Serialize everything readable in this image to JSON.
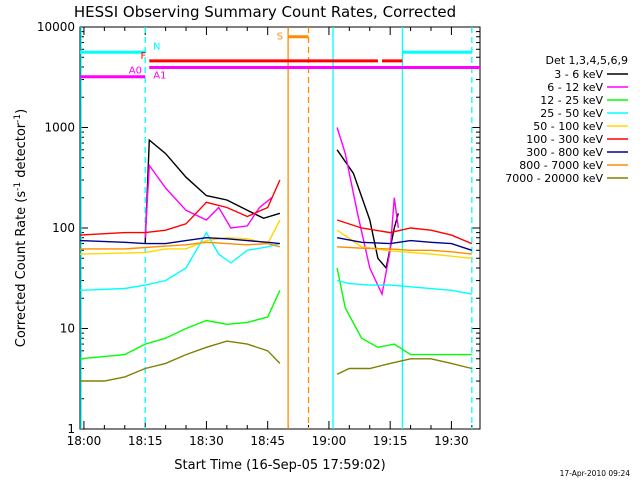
{
  "chart_data": {
    "type": "line",
    "title": "HESSI Observing Summary Count Rates, Corrected",
    "xlabel": "Start Time (16-Sep-05 17:59:02)",
    "ylabel": "Corrected Count Rate (s⁻¹ detector⁻¹)",
    "ylabel_main": "Corrected Count Rate (s",
    "ylabel_sup1": "-1",
    "ylabel_mid": " detector",
    "ylabel_sup2": "-1",
    "ylabel_end": ")",
    "footer": "17-Apr-2010 09:24",
    "y_scale": "log",
    "xlim": [
      "17:59:02",
      "19:37:00"
    ],
    "ylim": [
      1,
      10000
    ],
    "x_ticks": [
      "18:00",
      "18:15",
      "18:30",
      "18:45",
      "19:00",
      "19:15",
      "19:30"
    ],
    "y_ticks": [
      "1",
      "10",
      "100",
      "1000",
      "10000"
    ],
    "legend_title": "Det 1,3,4,5,6,9",
    "legend_position": "right",
    "series": [
      {
        "name": "3 - 6 keV",
        "color": "#000000",
        "x": [
          "18:15",
          "18:16",
          "18:20",
          "18:25",
          "18:30",
          "18:35",
          "18:40",
          "18:44",
          "18:48",
          "19:02",
          "19:06",
          "19:10",
          "19:12",
          "19:14",
          "19:16",
          "19:17"
        ],
        "y": [
          70,
          750,
          550,
          320,
          210,
          190,
          150,
          125,
          140,
          600,
          350,
          120,
          50,
          40,
          100,
          140
        ]
      },
      {
        "name": "6 - 12 keV",
        "color": "#ff00ff",
        "x": [
          "18:15",
          "18:16",
          "18:20",
          "18:25",
          "18:30",
          "18:33",
          "18:36",
          "18:40",
          "18:43",
          "18:46",
          "19:02",
          "19:04",
          "19:07",
          "19:10",
          "19:13",
          "19:15",
          "19:16",
          "19:17"
        ],
        "y": [
          80,
          420,
          250,
          150,
          120,
          160,
          100,
          105,
          160,
          200,
          1000,
          550,
          140,
          40,
          22,
          60,
          200,
          100
        ]
      },
      {
        "name": "12 - 25 keV",
        "color": "#00ff00",
        "x": [
          "17:59:02",
          "18:10",
          "18:15",
          "18:20",
          "18:25",
          "18:30",
          "18:35",
          "18:40",
          "18:45",
          "18:48",
          "19:02",
          "19:04",
          "19:08",
          "19:12",
          "19:16",
          "19:20",
          "19:25",
          "19:30",
          "19:35"
        ],
        "y": [
          5,
          5.5,
          7,
          8,
          10,
          12,
          11,
          11.5,
          13,
          24,
          40,
          16,
          8,
          6.5,
          7,
          5.5,
          5.5,
          5.5,
          5.5
        ]
      },
      {
        "name": "25 - 50 keV",
        "color": "#00ffff",
        "x": [
          "17:59:02",
          "18:10",
          "18:15",
          "18:20",
          "18:25",
          "18:30",
          "18:33",
          "18:36",
          "18:40",
          "18:45",
          "18:48",
          "19:02",
          "19:05",
          "19:10",
          "19:15",
          "19:20",
          "19:30",
          "19:35"
        ],
        "y": [
          24,
          25,
          27,
          30,
          40,
          90,
          55,
          45,
          60,
          65,
          70,
          30,
          28,
          27,
          27,
          26,
          24,
          22
        ]
      },
      {
        "name": "50 - 100 keV",
        "color": "#ffd700",
        "x": [
          "17:59:02",
          "18:15",
          "18:20",
          "18:25",
          "18:30",
          "18:35",
          "18:40",
          "18:45",
          "18:48",
          "19:02",
          "19:08",
          "19:14",
          "19:18",
          "19:25",
          "19:35"
        ],
        "y": [
          55,
          57,
          62,
          62,
          75,
          80,
          78,
          70,
          120,
          95,
          65,
          60,
          58,
          55,
          50
        ]
      },
      {
        "name": "100 - 300 keV",
        "color": "#ff0000",
        "x": [
          "17:59:02",
          "18:10",
          "18:15",
          "18:20",
          "18:25",
          "18:30",
          "18:35",
          "18:40",
          "18:45",
          "18:48",
          "19:02",
          "19:08",
          "19:15",
          "19:20",
          "19:25",
          "19:30",
          "19:35"
        ],
        "y": [
          85,
          90,
          90,
          95,
          110,
          180,
          160,
          130,
          160,
          300,
          120,
          100,
          90,
          100,
          95,
          85,
          70
        ]
      },
      {
        "name": "300 - 800 keV",
        "color": "#00008b",
        "x": [
          "17:59:02",
          "18:10",
          "18:15",
          "18:20",
          "18:25",
          "18:30",
          "18:35",
          "18:40",
          "18:45",
          "18:48",
          "19:02",
          "19:08",
          "19:15",
          "19:20",
          "19:25",
          "19:30",
          "19:35"
        ],
        "y": [
          75,
          72,
          70,
          70,
          75,
          80,
          78,
          75,
          72,
          70,
          80,
          72,
          70,
          75,
          72,
          70,
          60
        ]
      },
      {
        "name": "800 - 7000 keV",
        "color": "#ff8c00",
        "x": [
          "17:59:02",
          "18:10",
          "18:15",
          "18:20",
          "18:25",
          "18:30",
          "18:35",
          "18:40",
          "18:45",
          "18:48",
          "19:02",
          "19:08",
          "19:15",
          "19:20",
          "19:25",
          "19:30",
          "19:35"
        ],
        "y": [
          62,
          62,
          64,
          66,
          68,
          72,
          70,
          68,
          70,
          65,
          65,
          63,
          62,
          60,
          60,
          58,
          55
        ]
      },
      {
        "name": "7000 - 20000 keV",
        "color": "#808000",
        "x": [
          "17:59:02",
          "18:05",
          "18:10",
          "18:15",
          "18:20",
          "18:25",
          "18:30",
          "18:35",
          "18:40",
          "18:45",
          "18:48",
          "19:02",
          "19:05",
          "19:10",
          "19:15",
          "19:20",
          "19:25",
          "19:30",
          "19:35"
        ],
        "y": [
          3,
          3,
          3.3,
          4,
          4.5,
          5.5,
          6.5,
          7.5,
          7,
          6,
          4.5,
          3.5,
          4,
          4,
          4.5,
          5,
          5,
          4.5,
          4
        ]
      }
    ],
    "flags": [
      {
        "label": "N",
        "color": "#00ffff",
        "y": 5600,
        "segments": [
          [
            "17:59:02",
            "18:15"
          ],
          [
            "19:18",
            "19:35"
          ]
        ]
      },
      {
        "label": "S",
        "color": "#ff8c00",
        "y": 8000,
        "segments": [
          [
            "18:50",
            "18:55"
          ]
        ]
      },
      {
        "label": "F",
        "color": "#ff0000",
        "y": 4600,
        "segments": [
          [
            "18:16",
            "19:12"
          ],
          [
            "19:13",
            "19:18"
          ]
        ]
      },
      {
        "label": "A0",
        "color": "#ff00ff",
        "y": 3200,
        "segments": [
          [
            "17:59:02",
            "18:15"
          ]
        ]
      },
      {
        "label": "A1",
        "color": "#ff00ff",
        "y": 3950,
        "segments": [
          [
            "18:16",
            "19:37"
          ]
        ]
      }
    ],
    "vertical_markers": [
      {
        "x": "18:15",
        "color": "#00ffff",
        "style": "dashed"
      },
      {
        "x": "19:18",
        "color": "#00ffff",
        "style": "solid"
      },
      {
        "x": "19:35",
        "color": "#00ffff",
        "style": "dashed"
      },
      {
        "x": "17:59:02",
        "color": "#00ffff",
        "style": "solid"
      },
      {
        "x": "18:50",
        "color": "#ff8c00",
        "style": "solid"
      },
      {
        "x": "18:55",
        "color": "#ff8c00",
        "style": "dashed"
      },
      {
        "x": "19:01",
        "color": "#00ffff",
        "style": "solid"
      }
    ]
  }
}
